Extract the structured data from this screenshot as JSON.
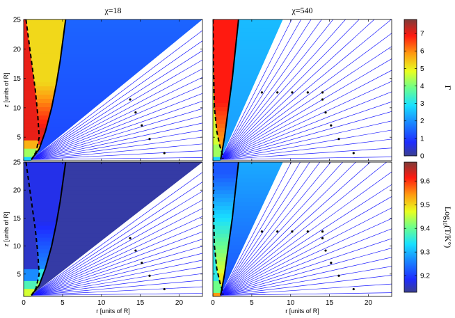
{
  "chart_data": [
    {
      "type": "heatmap",
      "panel": "top-left",
      "title": "χ=18",
      "ylabel": "z [units of R]",
      "xlim": [
        0,
        23
      ],
      "ylim": [
        1,
        25
      ],
      "x_ticks": [
        0,
        5,
        10,
        15,
        20
      ],
      "y_ticks": [
        5,
        10,
        15,
        20,
        25
      ],
      "quantity": "Γ",
      "cavity_boundary": [
        [
          0.3,
          25
        ],
        [
          0.7,
          21
        ],
        [
          1.1,
          17
        ],
        [
          1.5,
          13
        ],
        [
          1.8,
          9
        ],
        [
          2.0,
          5
        ],
        [
          1.6,
          2.5
        ],
        [
          1.0,
          1.2
        ]
      ],
      "jet_boundary": [
        [
          1.0,
          1.2
        ],
        [
          2.0,
          3
        ],
        [
          2.8,
          6
        ],
        [
          3.6,
          10
        ],
        [
          4.2,
          14
        ],
        [
          4.7,
          18
        ],
        [
          5.1,
          22
        ],
        [
          5.4,
          25
        ]
      ],
      "wind_edge": [
        [
          1.0,
          1.2
        ],
        [
          23,
          25
        ]
      ],
      "markers": [
        [
          13.7,
          11.4
        ],
        [
          14.4,
          9.2
        ],
        [
          15.2,
          7.0
        ],
        [
          16.2,
          4.7
        ],
        [
          18.1,
          2.3
        ]
      ]
    },
    {
      "type": "heatmap",
      "panel": "top-right",
      "title": "χ=540",
      "xlim": [
        0,
        23
      ],
      "ylim": [
        1,
        25
      ],
      "x_ticks": [
        0,
        5,
        10,
        15,
        20
      ],
      "y_ticks": [
        5,
        10,
        15,
        20,
        25
      ],
      "quantity": "Γ",
      "cavity_boundary": [
        [
          0.0,
          25
        ],
        [
          0.05,
          18
        ],
        [
          0.2,
          10
        ],
        [
          0.5,
          6
        ],
        [
          0.9,
          3.5
        ],
        [
          1.2,
          2.2
        ],
        [
          1.3,
          1.3
        ]
      ],
      "jet_boundary": [
        [
          1.0,
          1.2
        ],
        [
          1.5,
          5
        ],
        [
          2.0,
          10
        ],
        [
          2.5,
          15
        ],
        [
          2.9,
          20
        ],
        [
          3.3,
          25
        ]
      ],
      "wind_edge": [
        [
          1.0,
          1.2
        ],
        [
          9,
          25
        ]
      ],
      "markers": [
        [
          6.3,
          12.6
        ],
        [
          8.3,
          12.6
        ],
        [
          10.2,
          12.6
        ],
        [
          12.2,
          12.6
        ],
        [
          14.1,
          12.6
        ],
        [
          14.1,
          11.4
        ],
        [
          14.5,
          9.2
        ],
        [
          15.2,
          7.0
        ],
        [
          16.2,
          4.7
        ],
        [
          18.1,
          2.3
        ]
      ]
    },
    {
      "type": "heatmap",
      "panel": "bottom-left",
      "ylabel": "z [units of R]",
      "xlabel": "r [units of R]",
      "xlim": [
        0,
        23
      ],
      "ylim": [
        1,
        25
      ],
      "x_ticks": [
        0,
        5,
        10,
        15,
        20
      ],
      "y_ticks": [
        5,
        10,
        15,
        20,
        25
      ],
      "quantity": "Log10(T/K°)",
      "cavity_boundary": [
        [
          0.3,
          25
        ],
        [
          0.7,
          21
        ],
        [
          1.1,
          17
        ],
        [
          1.5,
          13
        ],
        [
          1.8,
          9
        ],
        [
          2.0,
          5
        ],
        [
          1.6,
          2.5
        ],
        [
          1.0,
          1.2
        ]
      ],
      "jet_boundary": [
        [
          1.0,
          1.2
        ],
        [
          2.0,
          3
        ],
        [
          2.8,
          6
        ],
        [
          3.6,
          10
        ],
        [
          4.2,
          14
        ],
        [
          4.7,
          18
        ],
        [
          5.1,
          22
        ],
        [
          5.4,
          25
        ]
      ],
      "wind_edge": [
        [
          1.0,
          1.2
        ],
        [
          23,
          25
        ]
      ],
      "markers": [
        [
          13.7,
          11.4
        ],
        [
          14.4,
          9.2
        ],
        [
          15.2,
          7.0
        ],
        [
          16.2,
          4.7
        ],
        [
          18.1,
          2.3
        ]
      ]
    },
    {
      "type": "heatmap",
      "panel": "bottom-right",
      "xlabel": "r [units of R]",
      "xlim": [
        0,
        23
      ],
      "ylim": [
        1,
        25
      ],
      "x_ticks": [
        0,
        5,
        10,
        15,
        20
      ],
      "y_ticks": [
        5,
        10,
        15,
        20,
        25
      ],
      "quantity": "Log10(T/K°)",
      "cavity_boundary": [
        [
          0.0,
          25
        ],
        [
          0.05,
          18
        ],
        [
          0.2,
          10
        ],
        [
          0.5,
          6
        ],
        [
          0.9,
          3.5
        ],
        [
          1.2,
          2.2
        ],
        [
          1.3,
          1.3
        ]
      ],
      "jet_boundary": [
        [
          1.0,
          1.2
        ],
        [
          1.5,
          5
        ],
        [
          2.0,
          10
        ],
        [
          2.5,
          15
        ],
        [
          2.9,
          20
        ],
        [
          3.3,
          25
        ]
      ],
      "wind_edge": [
        [
          1.0,
          1.2
        ],
        [
          9,
          25
        ]
      ],
      "markers": [
        [
          6.3,
          12.6
        ],
        [
          8.3,
          12.6
        ],
        [
          10.2,
          12.6
        ],
        [
          12.2,
          12.6
        ],
        [
          14.1,
          12.6
        ],
        [
          14.1,
          11.4
        ],
        [
          14.5,
          9.2
        ],
        [
          15.2,
          7.0
        ],
        [
          16.2,
          4.7
        ],
        [
          18.1,
          2.3
        ]
      ]
    }
  ],
  "colorbars": [
    {
      "label": "Γ",
      "range": [
        0,
        7.8
      ],
      "ticks": [
        0,
        1,
        2,
        3,
        4,
        5,
        6,
        7
      ]
    },
    {
      "label_main": "Log",
      "label_sub": "10",
      "label_rest": "(T/K°)",
      "range": [
        9.13,
        9.68
      ],
      "ticks": [
        9.2,
        9.3,
        9.4,
        9.5,
        9.6
      ]
    }
  ],
  "colors": {
    "field_lines": "#1a1aff",
    "wind_region": "#ffffff",
    "boundary": "#000000"
  }
}
